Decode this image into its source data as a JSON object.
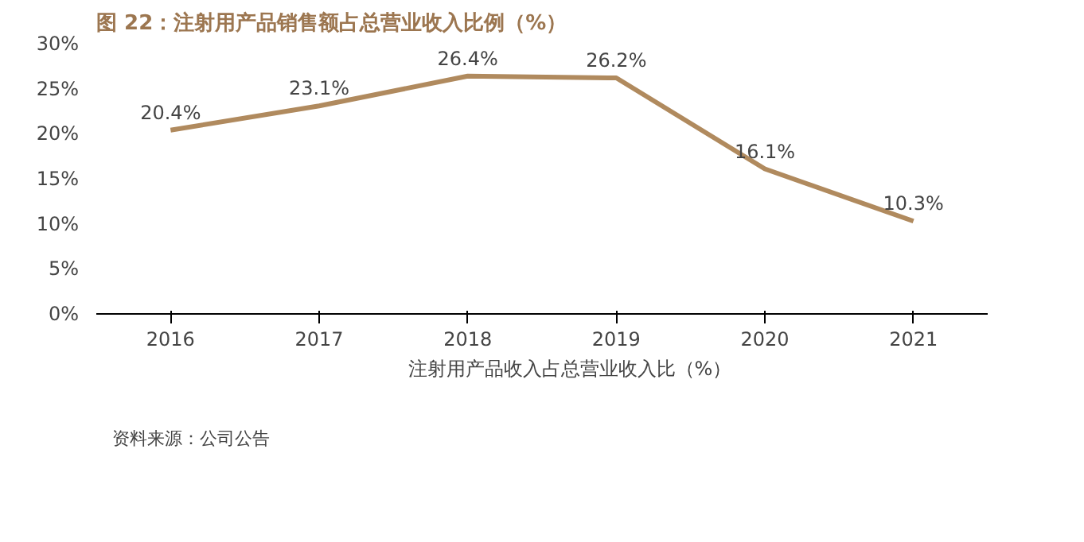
{
  "chart_data": {
    "type": "line",
    "title": "图 22：注射用产品销售额占总营业收入比例（%）",
    "categories": [
      "2016",
      "2017",
      "2018",
      "2019",
      "2020",
      "2021"
    ],
    "series": [
      {
        "name": "注射用产品收入占总营业收入比（%）",
        "color": "#b08a5e",
        "values": [
          20.4,
          23.1,
          26.4,
          26.2,
          16.1,
          10.3
        ]
      }
    ],
    "value_labels": [
      "20.4%",
      "23.1%",
      "26.4%",
      "26.2%",
      "16.1%",
      "10.3%"
    ],
    "ylim": [
      0,
      30
    ],
    "yticks": [
      {
        "value": 0,
        "label": "0%"
      },
      {
        "value": 5,
        "label": "5%"
      },
      {
        "value": 10,
        "label": "10%"
      },
      {
        "value": 15,
        "label": "15%"
      },
      {
        "value": 20,
        "label": "20%"
      },
      {
        "value": 25,
        "label": "25%"
      },
      {
        "value": 30,
        "label": "30%"
      }
    ],
    "grid": false,
    "legend": "bottom",
    "marker": "none",
    "line_style": "solid",
    "annotations": [
      "资料来源：公司公告"
    ]
  }
}
